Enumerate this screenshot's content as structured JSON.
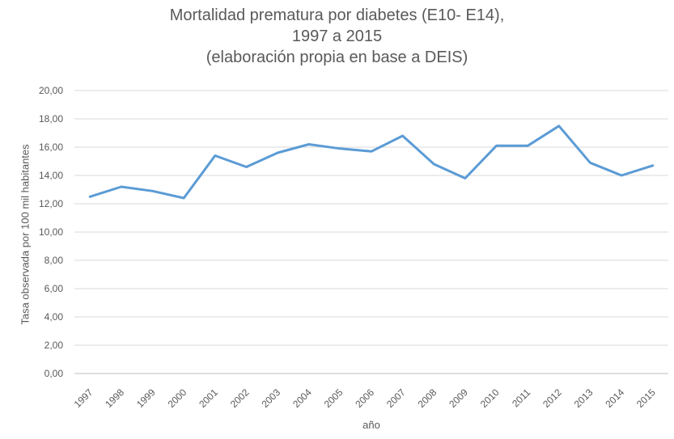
{
  "chart_data": {
    "type": "line",
    "title_lines": [
      "Mortalidad prematura por diabetes (E10- E14),",
      "1997 a 2015",
      "(elaboración propia en base a DEIS)"
    ],
    "xlabel": "año",
    "ylabel": "Tasa observada  por 100 mil habitantes",
    "categories": [
      "1997",
      "1998",
      "1999",
      "2000",
      "2001",
      "2002",
      "2003",
      "2004",
      "2005",
      "2006",
      "2007",
      "2008",
      "2009",
      "2010",
      "2011",
      "2012",
      "2013",
      "2014",
      "2015"
    ],
    "values": [
      12.5,
      13.2,
      12.9,
      12.4,
      15.4,
      14.6,
      15.6,
      16.2,
      15.9,
      15.7,
      16.8,
      14.8,
      13.8,
      16.1,
      16.1,
      17.5,
      14.9,
      14.0,
      14.7
    ],
    "yticks": [
      "0,00",
      "2,00",
      "4,00",
      "6,00",
      "8,00",
      "10,00",
      "12,00",
      "14,00",
      "16,00",
      "18,00",
      "20,00"
    ],
    "ylim": [
      0,
      20
    ],
    "grid": true,
    "legend": "none",
    "line_color": "#5B9BD5",
    "grid_color": "#D9D9D9"
  }
}
